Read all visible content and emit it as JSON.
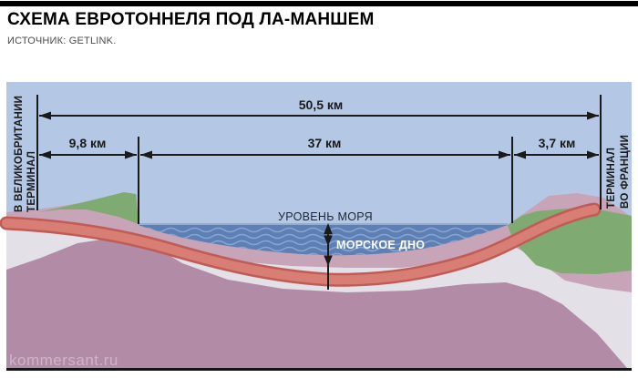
{
  "header": {
    "title": "СХЕМА ЕВРОТОННЕЛЯ ПОД ЛА-МАНШЕМ",
    "source": "ИСТОЧНИК: GETLINK."
  },
  "dimensions": {
    "total": "50,5 км",
    "uk_segment": "9,8 км",
    "sea_segment": "37 км",
    "fr_segment": "3,7 км"
  },
  "terminals": {
    "uk": [
      "ТЕРМИНАЛ",
      "В ВЕЛИКОБРИТАНИИ"
    ],
    "fr": [
      "ТЕРМИНАЛ",
      "ВО ФРАНЦИИ"
    ]
  },
  "labels": {
    "sea_level": "УРОВЕНЬ МОРЯ",
    "sea_floor": "МОРСКОЕ ДНО"
  },
  "watermark": "kommersant.ru",
  "palette": {
    "topbar": "#000000",
    "sky": "#b4c7e4",
    "water": "#5c7fb6",
    "wave": "#8aa5ce",
    "water_surface": "#a3b8da",
    "land_green": "#7fab72",
    "seabed_pink": "#c7a4b7",
    "chalk_gray": "#e3e0e7",
    "rock_mauve": "#b28ba6",
    "tunnel_outer": "#c05b55",
    "tunnel_inner": "#d97e75",
    "line_black": "#1a1a1a",
    "sea_level_text": "#1f2733",
    "sea_floor_text": "#ffffff",
    "watermark_color": "#e9dde6",
    "bottom_line": "#141414"
  }
}
